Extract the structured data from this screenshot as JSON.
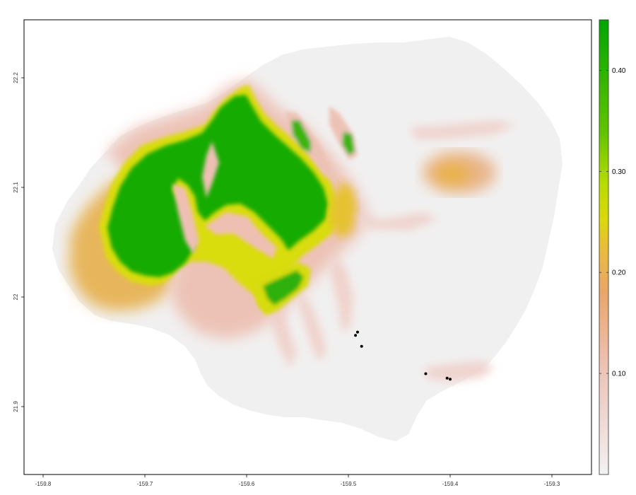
{
  "map": {
    "x_ticks": [
      "-159.8",
      "-159.7",
      "-159.6",
      "-159.5",
      "-159.4",
      "-159.3"
    ],
    "y_ticks": [
      "22.2",
      "22.1",
      "22",
      "21.9"
    ],
    "xlim": [
      -159.8,
      -159.3
    ],
    "ylim": [
      21.85,
      22.25
    ],
    "points": [
      {
        "lon": -159.493,
        "lat": 21.965
      },
      {
        "lon": -159.491,
        "lat": 21.968
      },
      {
        "lon": -159.487,
        "lat": 21.955
      },
      {
        "lon": -159.424,
        "lat": 21.93
      },
      {
        "lon": -159.403,
        "lat": 21.926
      },
      {
        "lon": -159.4,
        "lat": 21.925
      }
    ]
  },
  "colorbar": {
    "labels": [
      "0.40",
      "0.30",
      "0.20",
      "0.10"
    ],
    "range": [
      0,
      0.45
    ],
    "colors": {
      "low": "#f2f2f2",
      "low_pink": "#edc8c0",
      "mid": "#e9b24a",
      "yellow": "#d6e000",
      "green": "#2fb010",
      "high": "#00a600"
    }
  }
}
